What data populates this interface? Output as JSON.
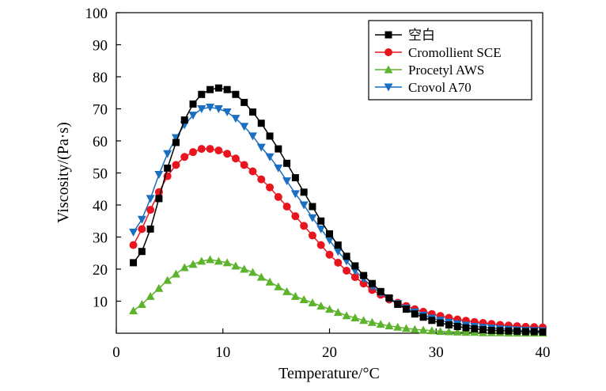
{
  "chart_data": {
    "type": "line",
    "xlabel": "Temperature/°C",
    "ylabel": "Viscosity/(Pa·s)",
    "xlim": [
      0,
      40
    ],
    "ylim": [
      0,
      100
    ],
    "xticks": [
      "0",
      "10",
      "20",
      "30",
      "40"
    ],
    "yticks": [
      "10",
      "20",
      "30",
      "40",
      "50",
      "60",
      "70",
      "80",
      "90",
      "100"
    ],
    "grid": false,
    "legend_position": "top-right",
    "series": [
      {
        "name": "空白",
        "color": "#000000",
        "marker": "square",
        "x": [
          1.6,
          2.4,
          3.2,
          4.0,
          4.8,
          5.6,
          6.4,
          7.2,
          8.0,
          8.8,
          9.6,
          10.4,
          11.2,
          12.0,
          12.8,
          13.6,
          14.4,
          15.2,
          16.0,
          16.8,
          17.6,
          18.4,
          19.2,
          20.0,
          20.8,
          21.6,
          22.4,
          23.2,
          24.0,
          24.8,
          25.6,
          26.4,
          27.2,
          28.0,
          28.8,
          29.6,
          30.4,
          31.2,
          32.0,
          32.8,
          33.6,
          34.4,
          35.2,
          36.0,
          36.8,
          37.6,
          38.4,
          39.2,
          40.0
        ],
        "y": [
          22.0,
          25.5,
          32.5,
          42.0,
          51.5,
          59.5,
          66.5,
          71.5,
          74.5,
          76.0,
          76.5,
          76.0,
          74.5,
          72.0,
          69.0,
          65.5,
          61.5,
          57.5,
          53.0,
          48.5,
          44.0,
          39.5,
          35.0,
          31.0,
          27.5,
          24.0,
          21.0,
          18.0,
          15.5,
          13.0,
          11.0,
          9.0,
          7.5,
          6.0,
          5.0,
          4.0,
          3.2,
          2.6,
          2.1,
          1.7,
          1.4,
          1.1,
          0.9,
          0.8,
          0.7,
          0.6,
          0.5,
          0.5,
          0.4
        ]
      },
      {
        "name": "Cromollient SCE",
        "color": "#e8141e",
        "marker": "circle",
        "x": [
          1.6,
          2.4,
          3.2,
          4.0,
          4.8,
          5.6,
          6.4,
          7.2,
          8.0,
          8.8,
          9.6,
          10.4,
          11.2,
          12.0,
          12.8,
          13.6,
          14.4,
          15.2,
          16.0,
          16.8,
          17.6,
          18.4,
          19.2,
          20.0,
          20.8,
          21.6,
          22.4,
          23.2,
          24.0,
          24.8,
          25.6,
          26.4,
          27.2,
          28.0,
          28.8,
          29.6,
          30.4,
          31.2,
          32.0,
          32.8,
          33.6,
          34.4,
          35.2,
          36.0,
          36.8,
          37.6,
          38.4,
          39.2,
          40.0
        ],
        "y": [
          27.5,
          32.5,
          38.5,
          44.0,
          49.0,
          52.5,
          55.0,
          56.5,
          57.5,
          57.5,
          57.0,
          56.0,
          54.5,
          52.5,
          50.5,
          48.0,
          45.5,
          42.5,
          39.5,
          36.5,
          33.5,
          30.5,
          27.5,
          24.5,
          22.0,
          19.5,
          17.5,
          15.5,
          13.5,
          12.0,
          10.5,
          9.5,
          8.5,
          7.5,
          6.7,
          6.0,
          5.4,
          4.8,
          4.3,
          3.9,
          3.5,
          3.2,
          2.9,
          2.6,
          2.4,
          2.2,
          2.0,
          1.9,
          1.8
        ]
      },
      {
        "name": "Procetyl AWS",
        "color": "#5db32c",
        "marker": "triangle-up",
        "x": [
          1.6,
          2.4,
          3.2,
          4.0,
          4.8,
          5.6,
          6.4,
          7.2,
          8.0,
          8.8,
          9.6,
          10.4,
          11.2,
          12.0,
          12.8,
          13.6,
          14.4,
          15.2,
          16.0,
          16.8,
          17.6,
          18.4,
          19.2,
          20.0,
          20.8,
          21.6,
          22.4,
          23.2,
          24.0,
          24.8,
          25.6,
          26.4,
          27.2,
          28.0,
          28.8,
          29.6,
          30.4,
          31.2,
          32.0,
          32.8,
          33.6,
          34.4,
          35.2,
          36.0,
          36.8,
          37.6,
          38.4,
          39.2,
          40.0
        ],
        "y": [
          7.0,
          9.0,
          11.5,
          14.0,
          16.5,
          18.5,
          20.5,
          21.5,
          22.5,
          23.0,
          22.5,
          22.0,
          21.0,
          20.0,
          19.0,
          17.5,
          16.0,
          14.5,
          13.0,
          11.5,
          10.5,
          9.5,
          8.5,
          7.5,
          6.5,
          5.5,
          4.8,
          4.0,
          3.4,
          2.8,
          2.3,
          1.9,
          1.5,
          1.2,
          1.0,
          0.8,
          0.6,
          0.5,
          0.4,
          0.3,
          0.3,
          0.2,
          0.2,
          0.2,
          0.1,
          0.1,
          0.1,
          0.1,
          0.1
        ]
      },
      {
        "name": "Crovol A70",
        "color": "#1a6fc0",
        "marker": "triangle-down",
        "x": [
          1.6,
          2.4,
          3.2,
          4.0,
          4.8,
          5.6,
          6.4,
          7.2,
          8.0,
          8.8,
          9.6,
          10.4,
          11.2,
          12.0,
          12.8,
          13.6,
          14.4,
          15.2,
          16.0,
          16.8,
          17.6,
          18.4,
          19.2,
          20.0,
          20.8,
          21.6,
          22.4,
          23.2,
          24.0,
          24.8,
          25.6,
          26.4,
          27.2,
          28.0,
          28.8,
          29.6,
          30.4,
          31.2,
          32.0,
          32.8,
          33.6,
          34.4,
          35.2,
          36.0,
          36.8,
          37.6,
          38.4,
          39.2,
          40.0
        ],
        "y": [
          31.5,
          35.5,
          42.0,
          49.5,
          56.0,
          61.0,
          65.0,
          68.0,
          70.0,
          70.5,
          70.0,
          69.0,
          67.0,
          64.5,
          61.5,
          58.0,
          55.0,
          51.5,
          47.5,
          43.5,
          40.0,
          36.0,
          32.5,
          29.0,
          25.5,
          22.5,
          19.5,
          17.0,
          14.5,
          12.5,
          10.7,
          9.2,
          7.8,
          6.6,
          5.6,
          4.7,
          4.0,
          3.4,
          2.9,
          2.5,
          2.1,
          1.8,
          1.6,
          1.4,
          1.2,
          1.0,
          0.9,
          0.8,
          0.7
        ]
      }
    ]
  }
}
